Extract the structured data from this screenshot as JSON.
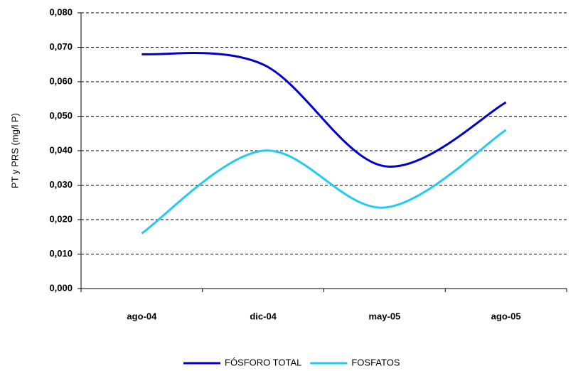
{
  "chart_data": {
    "type": "line",
    "y_label": "PT y PRS (mg/l P)",
    "categories": [
      "ago-04",
      "dic-04",
      "may-05",
      "ago-05"
    ],
    "series": [
      {
        "name": "FÓSFORO TOTAL",
        "color": "#0000cc",
        "values": [
          0.068,
          0.065,
          0.0355,
          0.054
        ]
      },
      {
        "name": "FOSFATOS",
        "color": "#22ccf0",
        "values": [
          0.016,
          0.04,
          0.0235,
          0.046
        ]
      }
    ],
    "ylim": [
      0,
      0.08
    ],
    "yticks": [
      {
        "value": 0,
        "label": "0,000"
      },
      {
        "value": 0.01,
        "label": "0,010"
      },
      {
        "value": 0.02,
        "label": "0,020"
      },
      {
        "value": 0.03,
        "label": "0,030"
      },
      {
        "value": 0.04,
        "label": "0,040"
      },
      {
        "value": 0.05,
        "label": "0,050"
      },
      {
        "value": 0.06,
        "label": "0,060"
      },
      {
        "value": 0.07,
        "label": "0,070"
      },
      {
        "value": 0.08,
        "label": "0,080"
      }
    ],
    "grid": true,
    "legend": "bottom"
  }
}
